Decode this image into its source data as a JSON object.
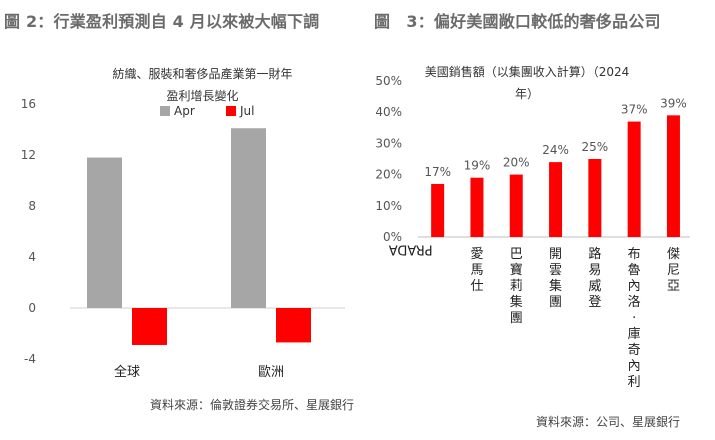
{
  "header": {
    "left_title": "圖 2：行業盈利預測自 4 月以來被大幅下調",
    "right_title": "圖　3：偏好美國敞口較低的奢侈品公司"
  },
  "chart_data": [
    {
      "type": "bar",
      "title_line1": "紡織、服裝和奢侈品產業第一財年",
      "title_line2": "盈利增長變化",
      "categories": [
        "全球",
        "歐洲"
      ],
      "series": [
        {
          "name": "Apr",
          "values": [
            11.8,
            14.1
          ],
          "color": "#a6a6a6"
        },
        {
          "name": "Jul",
          "values": [
            -2.9,
            -2.7
          ],
          "color": "#ff0000"
        }
      ],
      "yticks": [
        "16",
        "12",
        "8",
        "4",
        "0",
        "-4"
      ],
      "ylim": [
        -4,
        16
      ],
      "legend": "top",
      "grid": false,
      "source": "資料來源：倫敦證券交易所、星展銀行"
    },
    {
      "type": "bar",
      "title_line1": "美國銷售額（以集團收入計算）（2024",
      "title_line2": "年）",
      "categories": [
        "PRADA",
        "愛馬仕",
        "巴寶莉集團",
        "開雲集團",
        "路易威登",
        "布魯內洛·庫奇內利",
        "傑尼亞"
      ],
      "values": [
        17,
        19,
        20,
        24,
        25,
        37,
        39
      ],
      "value_labels": [
        "17%",
        "19%",
        "20%",
        "24%",
        "25%",
        "37%",
        "39%"
      ],
      "yticks": [
        "50%",
        "40%",
        "30%",
        "20%",
        "10%",
        "0%"
      ],
      "ylim": [
        0,
        50
      ],
      "color": "#ff0000",
      "grid": false,
      "source": "資料來源：公司、星展銀行"
    }
  ]
}
